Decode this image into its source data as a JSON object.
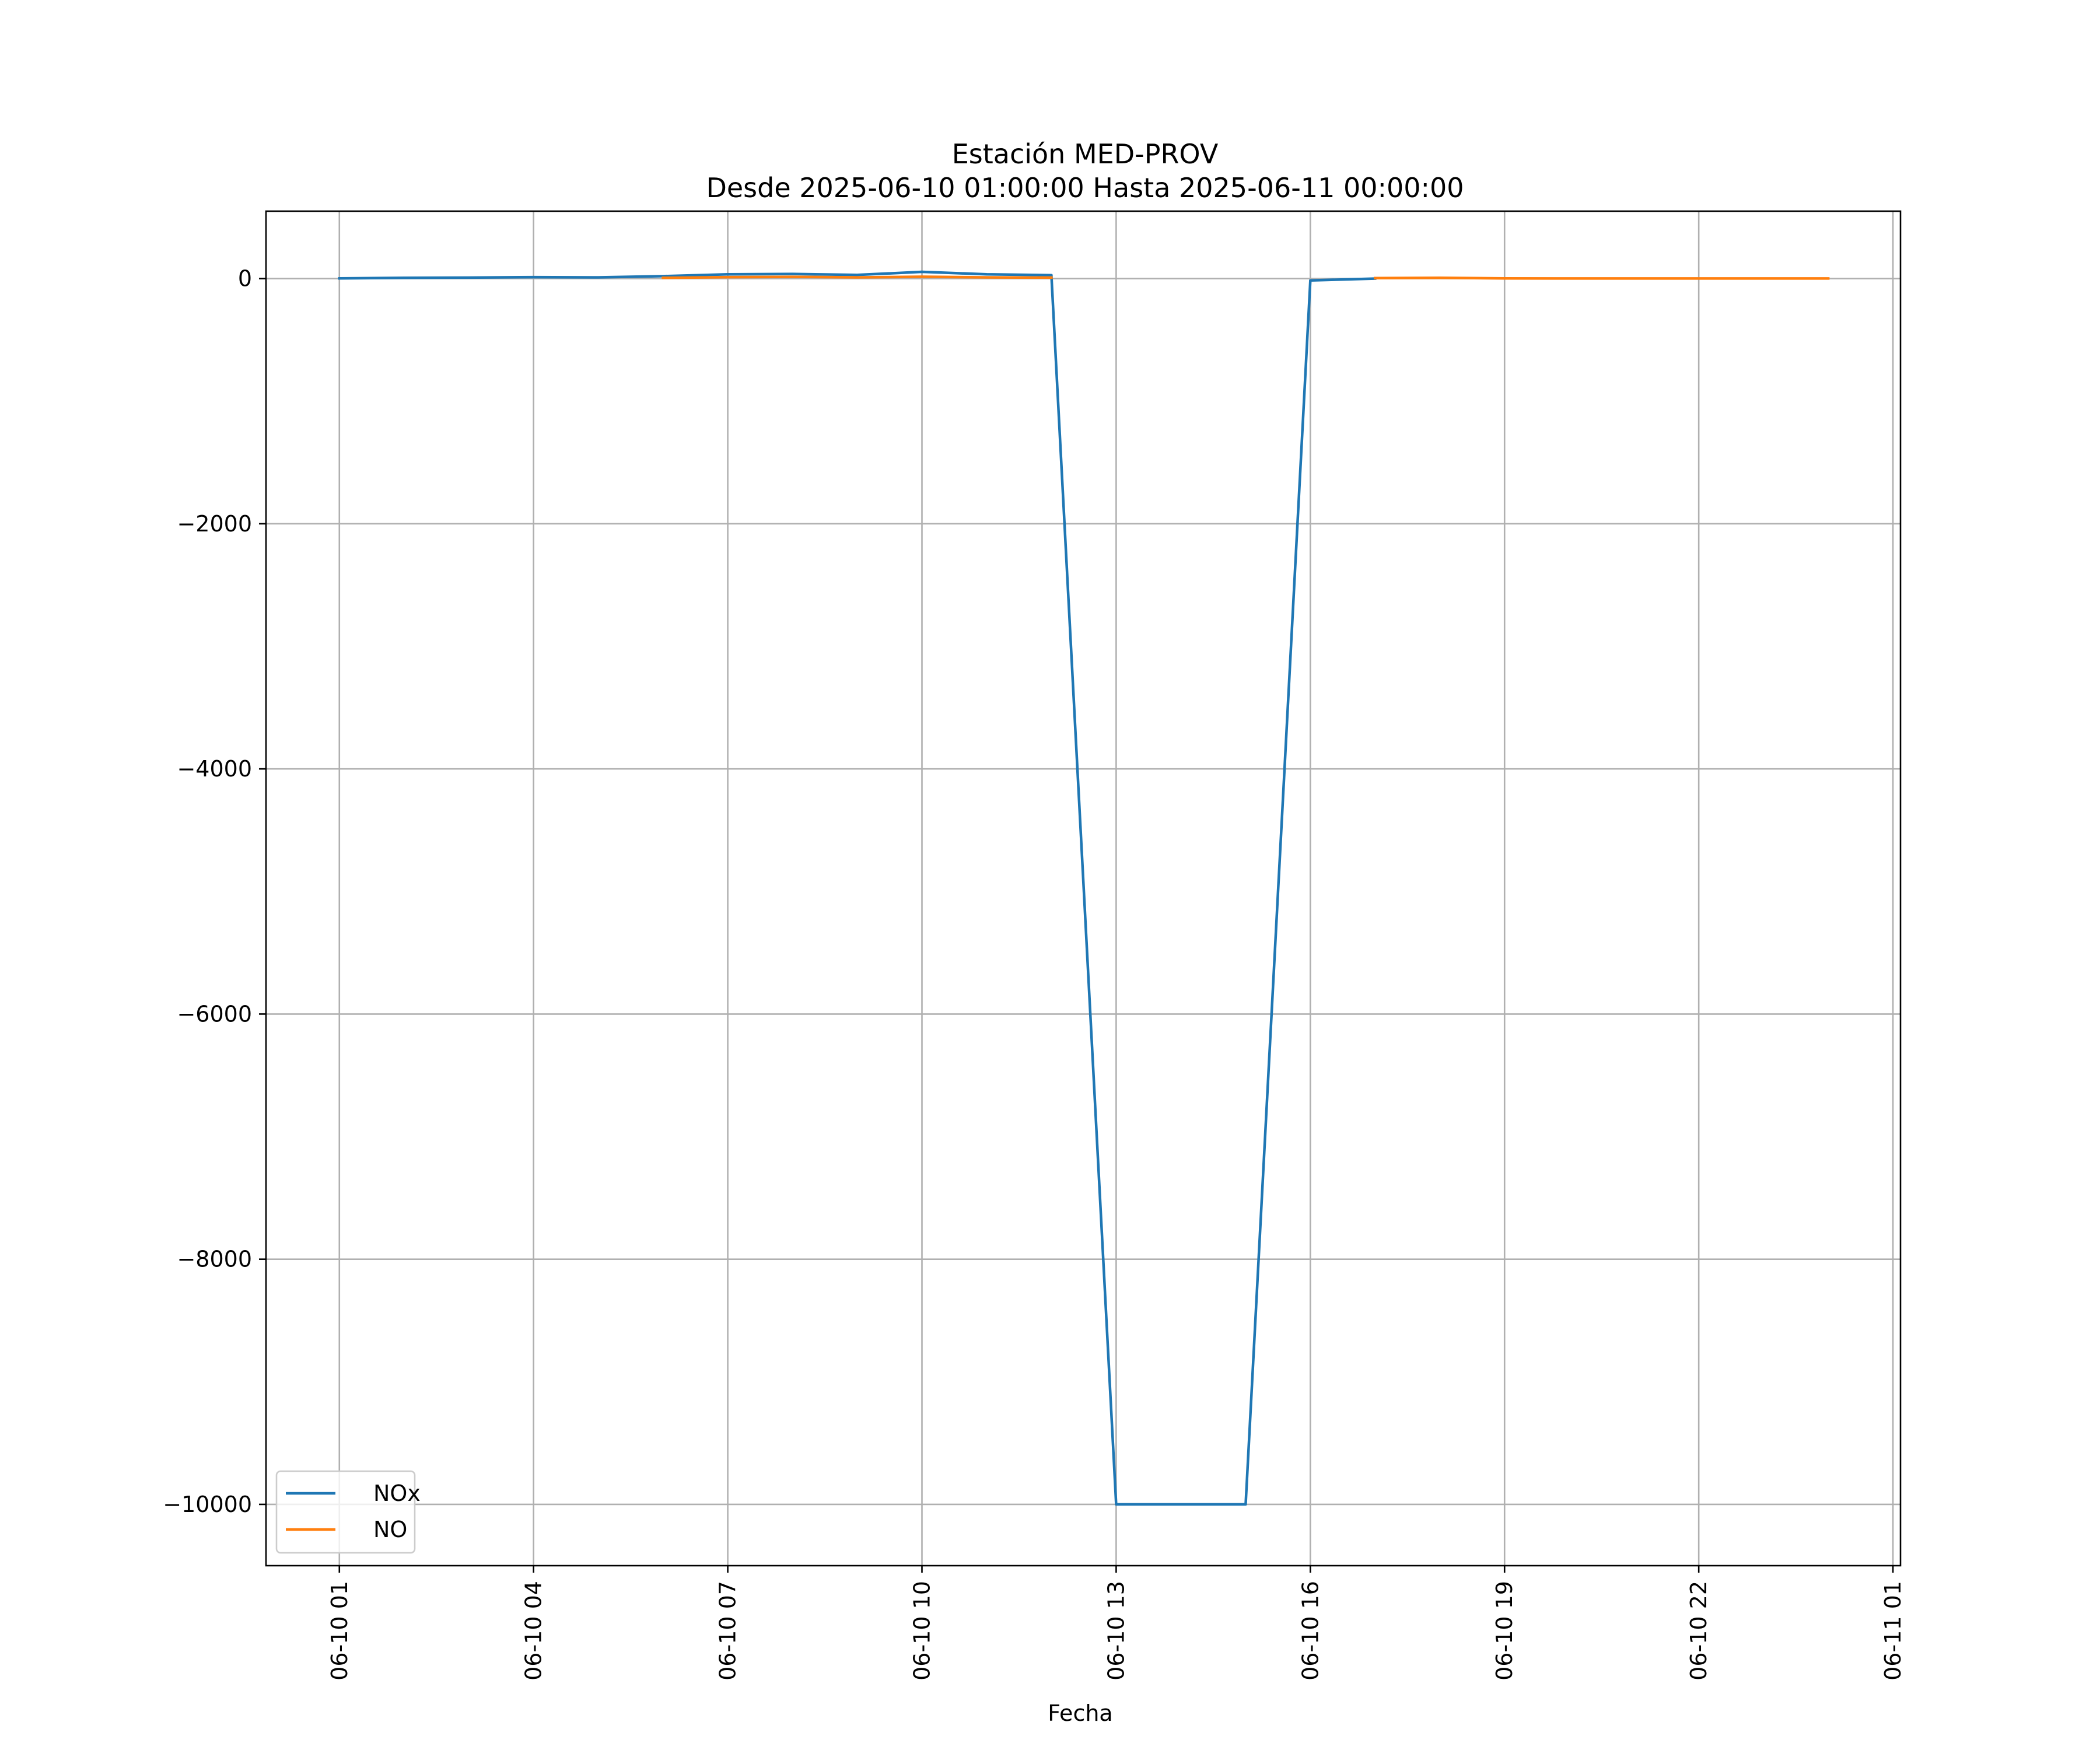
{
  "chart_data": {
    "type": "line",
    "title": "Estación MED-PROV",
    "subtitle": "Desde 2025-06-10 01:00:00 Hasta 2025-06-11 00:00:00",
    "xlabel": "Fecha",
    "ylabel": "",
    "x_axis": {
      "type": "datetime",
      "range": [
        "2025-06-09 23:52",
        "2025-06-11 01:07"
      ],
      "ticks": [
        {
          "time": "2025-06-10 01:00",
          "label": "06-10 01"
        },
        {
          "time": "2025-06-10 04:00",
          "label": "06-10 04"
        },
        {
          "time": "2025-06-10 07:00",
          "label": "06-10 07"
        },
        {
          "time": "2025-06-10 10:00",
          "label": "06-10 10"
        },
        {
          "time": "2025-06-10 13:00",
          "label": "06-10 13"
        },
        {
          "time": "2025-06-10 16:00",
          "label": "06-10 16"
        },
        {
          "time": "2025-06-10 19:00",
          "label": "06-10 19"
        },
        {
          "time": "2025-06-10 22:00",
          "label": "06-10 22"
        },
        {
          "time": "2025-06-11 01:00",
          "label": "06-11 01"
        }
      ]
    },
    "y_axis": {
      "range": [
        -10500,
        550
      ],
      "ticks": [
        {
          "value": 0,
          "label": "0"
        },
        {
          "value": -2000,
          "label": "−2000"
        },
        {
          "value": -4000,
          "label": "−4000"
        },
        {
          "value": -6000,
          "label": "−6000"
        },
        {
          "value": -8000,
          "label": "−8000"
        },
        {
          "value": -10000,
          "label": "−10000"
        }
      ]
    },
    "grid": true,
    "legend_position": "lower-left",
    "series": [
      {
        "name": "NOx",
        "color": "#1f77b4",
        "points": [
          {
            "x": "2025-06-10 01:00",
            "y": 2
          },
          {
            "x": "2025-06-10 02:00",
            "y": 6
          },
          {
            "x": "2025-06-10 03:00",
            "y": 8
          },
          {
            "x": "2025-06-10 04:00",
            "y": 12
          },
          {
            "x": "2025-06-10 05:00",
            "y": 10
          },
          {
            "x": "2025-06-10 06:00",
            "y": 20
          },
          {
            "x": "2025-06-10 07:00",
            "y": 35
          },
          {
            "x": "2025-06-10 08:00",
            "y": 38
          },
          {
            "x": "2025-06-10 09:00",
            "y": 30
          },
          {
            "x": "2025-06-10 10:00",
            "y": 55
          },
          {
            "x": "2025-06-10 11:00",
            "y": 35
          },
          {
            "x": "2025-06-10 12:00",
            "y": 28
          },
          {
            "x": "2025-06-10 13:00",
            "y": -10000
          },
          {
            "x": "2025-06-10 14:00",
            "y": -10000
          },
          {
            "x": "2025-06-10 15:00",
            "y": -10000
          },
          {
            "x": "2025-06-10 16:00",
            "y": -15
          },
          {
            "x": "2025-06-10 17:00",
            "y": 0
          }
        ]
      },
      {
        "name": "NO",
        "color": "#ff7f0e",
        "segments": [
          [
            {
              "x": "2025-06-10 06:00",
              "y": 6
            },
            {
              "x": "2025-06-10 07:00",
              "y": 12
            },
            {
              "x": "2025-06-10 08:00",
              "y": 14
            },
            {
              "x": "2025-06-10 09:00",
              "y": 10
            },
            {
              "x": "2025-06-10 10:00",
              "y": 15
            },
            {
              "x": "2025-06-10 11:00",
              "y": 10
            },
            {
              "x": "2025-06-10 12:00",
              "y": 8
            }
          ],
          [
            {
              "x": "2025-06-10 17:00",
              "y": 4
            },
            {
              "x": "2025-06-10 18:00",
              "y": 6
            },
            {
              "x": "2025-06-10 19:00",
              "y": 2
            },
            {
              "x": "2025-06-10 20:00",
              "y": 1
            },
            {
              "x": "2025-06-10 21:00",
              "y": 1
            },
            {
              "x": "2025-06-10 22:00",
              "y": 1
            },
            {
              "x": "2025-06-10 23:00",
              "y": 1
            },
            {
              "x": "2025-06-11 00:00",
              "y": 1
            }
          ]
        ]
      }
    ]
  }
}
